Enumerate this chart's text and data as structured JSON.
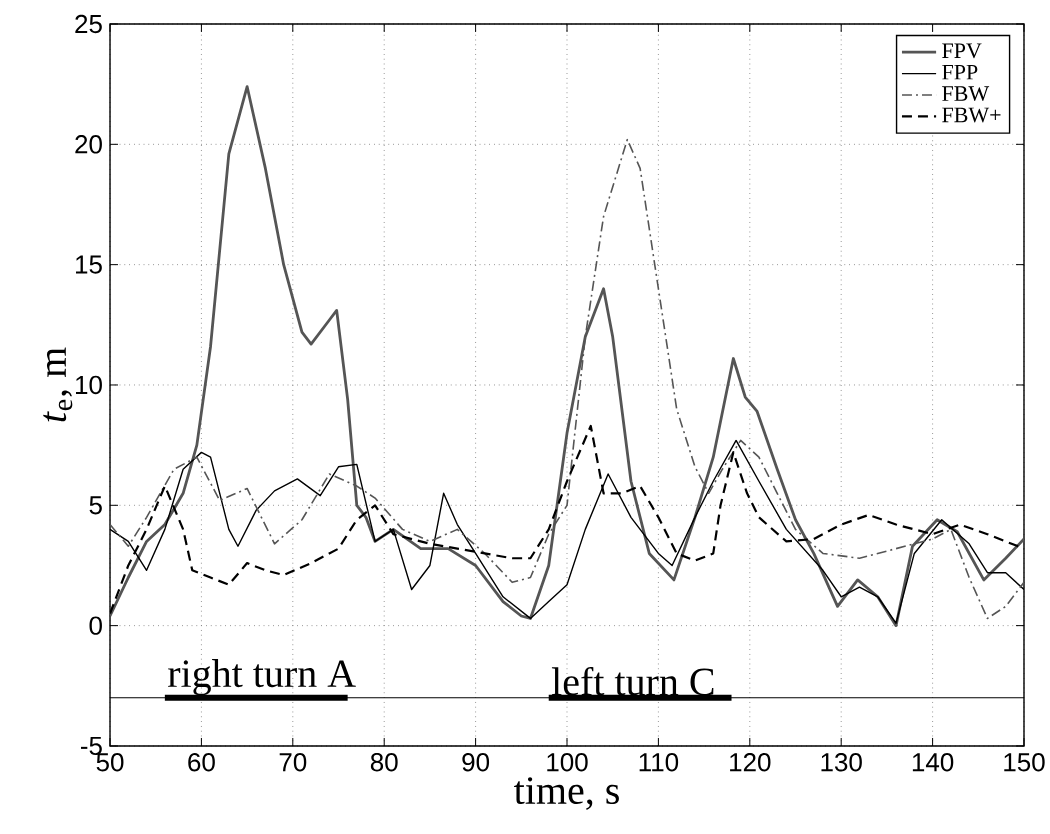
{
  "chart_data": {
    "type": "line",
    "xlabel": "time, s",
    "ylabel": "*t*$_{e}$, m",
    "xlim": [
      50,
      150
    ],
    "ylim": [
      -5,
      25
    ],
    "xticks": [
      50,
      60,
      70,
      80,
      90,
      100,
      110,
      120,
      130,
      140,
      150
    ],
    "yticks": [
      -5,
      0,
      5,
      10,
      15,
      20,
      25
    ],
    "grid": true,
    "legend": "top right",
    "ref_lines": [
      {
        "axis": "y",
        "value": -3,
        "color": "#000000"
      }
    ],
    "annotations": [
      {
        "text": "right turn A",
        "x": 56,
        "y": -3
      },
      {
        "text": "left turn C",
        "x": 98,
        "y": -3
      }
    ],
    "series": [
      {
        "color": "#000000",
        "line_style": "solid",
        "x": [
          56,
          76
        ],
        "values": [
          -3,
          -3
        ]
      },
      {
        "color": "#000000",
        "line_style": "solid",
        "x": [
          98,
          118
        ],
        "values": [
          -3,
          -3
        ]
      },
      {
        "name": "FPV",
        "color": "#555555",
        "line_style": "solid",
        "x": [
          50,
          52,
          54,
          56,
          58,
          59.5,
          61,
          63,
          65,
          67,
          69,
          71,
          72,
          74,
          74.8,
          76,
          77,
          78,
          79,
          81,
          84,
          87,
          90,
          93,
          95,
          96,
          98,
          100,
          102,
          104,
          105,
          107,
          109,
          111.7,
          114,
          116,
          118.2,
          119.5,
          120.8,
          123,
          125,
          127,
          129.6,
          131.8,
          134,
          136,
          137.8,
          140.5,
          142.7,
          145.6,
          148,
          150
        ],
        "values": [
          0.4,
          2,
          3.5,
          4.2,
          5.5,
          7.5,
          11.6,
          19.6,
          22.4,
          19,
          15,
          12.2,
          11.7,
          12.7,
          13.1,
          9.4,
          5,
          4.5,
          3.5,
          4,
          3.2,
          3.2,
          2.5,
          1,
          0.4,
          0.3,
          2.5,
          8,
          12,
          14,
          12,
          6,
          3,
          1.9,
          4.5,
          7,
          11.1,
          9.5,
          8.9,
          6.5,
          4.4,
          3,
          0.8,
          1.9,
          1.2,
          0,
          3.3,
          4.4,
          3.9,
          1.9,
          2.8,
          3.6
        ]
      },
      {
        "name": "FPP",
        "color": "#000000",
        "line_style": "solid",
        "x": [
          50,
          52,
          54,
          56,
          58,
          60,
          61,
          63,
          64,
          66,
          68,
          70.5,
          73,
          75,
          77,
          79,
          81,
          83,
          85,
          86.5,
          88,
          90,
          93,
          96,
          98,
          100,
          102,
          104.5,
          107,
          110,
          111.5,
          114,
          116,
          118.5,
          121,
          124,
          128,
          130,
          132,
          134,
          136,
          138,
          141,
          144,
          146,
          148,
          150
        ],
        "values": [
          4,
          3.5,
          2.3,
          4,
          6.5,
          7.2,
          7,
          4,
          3.3,
          4.8,
          5.6,
          6.1,
          5.4,
          6.6,
          6.7,
          3.5,
          4,
          1.5,
          2.5,
          5.5,
          4.2,
          3,
          1.2,
          0.3,
          1,
          1.7,
          4,
          6.3,
          4.5,
          3,
          2.5,
          4.5,
          6,
          7.7,
          6,
          4,
          2.3,
          1.2,
          1.6,
          1.2,
          0.1,
          3,
          4.4,
          3.4,
          2.2,
          2.2,
          1.5
        ]
      },
      {
        "name": "FBW",
        "color": "#555555",
        "line_style": "dashdot",
        "x": [
          50,
          52,
          54,
          57,
          59.5,
          62,
          65,
          68,
          71,
          74,
          77,
          79,
          82,
          85,
          88,
          91,
          94,
          96,
          98,
          100,
          102,
          104,
          106.6,
          108,
          110,
          112,
          114,
          115.5,
          117,
          119,
          121,
          123,
          125,
          128,
          132,
          136,
          140,
          142,
          144,
          146,
          148,
          150
        ],
        "values": [
          4.2,
          3.3,
          4.5,
          6.5,
          7,
          5.2,
          5.7,
          3.4,
          4.4,
          6.3,
          5.8,
          5.3,
          4,
          3.5,
          4,
          3,
          1.8,
          2,
          3.8,
          5,
          12,
          17,
          20.2,
          19,
          14,
          9,
          6.6,
          5.5,
          6.5,
          7.7,
          7,
          5.5,
          4,
          3,
          2.8,
          3.2,
          3.6,
          4,
          2,
          0.3,
          0.8,
          1.8
        ]
      },
      {
        "name": "FBW+",
        "color": "#000000",
        "line_style": "dashed",
        "x": [
          50,
          52,
          54,
          56,
          58,
          59,
          61,
          63,
          65,
          67,
          69,
          72,
          75,
          77,
          79,
          81,
          83,
          85,
          88,
          91,
          94,
          96,
          98,
          100,
          102.6,
          104,
          106,
          108,
          110,
          112,
          114,
          116,
          116.8,
          118.2,
          119.7,
          121,
          124,
          127,
          130,
          133,
          136,
          140,
          143,
          146,
          150
        ],
        "values": [
          0.5,
          2.5,
          4,
          5.8,
          4,
          2.3,
          2,
          1.7,
          2.6,
          2.3,
          2.1,
          2.6,
          3.2,
          4.4,
          5,
          3.8,
          3.6,
          3.4,
          3.2,
          3,
          2.8,
          2.8,
          4,
          6,
          8.3,
          5.5,
          5.5,
          5.8,
          4.5,
          3,
          2.7,
          3,
          5,
          7.2,
          5.5,
          4.5,
          3.5,
          3.6,
          4.2,
          4.6,
          4.2,
          3.8,
          4.2,
          3.8,
          3.2
        ]
      }
    ]
  }
}
